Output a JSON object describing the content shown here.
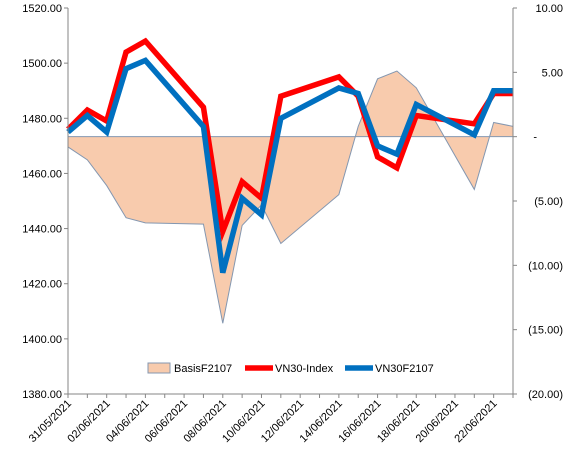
{
  "chart_data": {
    "type": "line",
    "categories": [
      "31/05/2021",
      "01/06/2021",
      "02/06/2021",
      "03/06/2021",
      "04/06/2021",
      "05/06/2021",
      "06/06/2021",
      "07/06/2021",
      "08/06/2021",
      "09/06/2021",
      "10/06/2021",
      "11/06/2021",
      "12/06/2021",
      "13/06/2021",
      "14/06/2021",
      "15/06/2021",
      "16/06/2021",
      "17/06/2021",
      "18/06/2021",
      "19/06/2021",
      "20/06/2021",
      "21/06/2021",
      "22/06/2021",
      "23/06/2021"
    ],
    "x_tick_labels": [
      "31/05/2021",
      "02/06/2021",
      "04/06/2021",
      "06/06/2021",
      "08/06/2021",
      "10/06/2021",
      "12/06/2021",
      "14/06/2021",
      "16/06/2021",
      "18/06/2021",
      "20/06/2021",
      "22/06/2021"
    ],
    "y_left": {
      "range": [
        1380,
        1520
      ],
      "ticks": [
        "1380.00",
        "1400.00",
        "1420.00",
        "1440.00",
        "1460.00",
        "1480.00",
        "1500.00",
        "1520.00"
      ]
    },
    "y_right": {
      "range": [
        -20,
        10
      ],
      "ticks": [
        "(20.00)",
        "(15.00)",
        "(10.00)",
        "(5.00)",
        "-",
        "5.00",
        "10.00"
      ]
    },
    "series": [
      {
        "name": "BasisF2107",
        "axis": "right",
        "style": "area",
        "color": "#f8cbad",
        "edge_color": "#8497b0",
        "x": [
          "31/05/2021",
          "01/06/2021",
          "02/06/2021",
          "03/06/2021",
          "04/06/2021",
          "07/06/2021",
          "08/06/2021",
          "09/06/2021",
          "10/06/2021",
          "11/06/2021",
          "14/06/2021",
          "15/06/2021",
          "16/06/2021",
          "17/06/2021",
          "18/06/2021",
          "21/06/2021",
          "22/06/2021",
          "23/06/2021"
        ],
        "values": [
          -0.8,
          -1.8,
          -3.8,
          -6.3,
          -6.7,
          -6.8,
          -14.5,
          -6.9,
          -5.3,
          -8.3,
          -4.5,
          0.8,
          4.5,
          5.1,
          3.8,
          -4.1,
          1.1,
          0.8
        ]
      },
      {
        "name": "VN30-Index",
        "axis": "left",
        "style": "line",
        "color": "#ff0000",
        "x": [
          "31/05/2021",
          "01/06/2021",
          "02/06/2021",
          "03/06/2021",
          "04/06/2021",
          "07/06/2021",
          "08/06/2021",
          "09/06/2021",
          "10/06/2021",
          "11/06/2021",
          "14/06/2021",
          "15/06/2021",
          "16/06/2021",
          "17/06/2021",
          "18/06/2021",
          "21/06/2021",
          "22/06/2021",
          "23/06/2021"
        ],
        "values": [
          1476,
          1483,
          1479,
          1504,
          1508,
          1484,
          1439,
          1457,
          1451,
          1488,
          1495,
          1488,
          1466,
          1462,
          1481,
          1478,
          1489,
          1489
        ]
      },
      {
        "name": "VN30F2107",
        "axis": "left",
        "style": "line",
        "color": "#0070c0",
        "x": [
          "31/05/2021",
          "01/06/2021",
          "02/06/2021",
          "03/06/2021",
          "04/06/2021",
          "07/06/2021",
          "08/06/2021",
          "09/06/2021",
          "10/06/2021",
          "11/06/2021",
          "14/06/2021",
          "15/06/2021",
          "16/06/2021",
          "17/06/2021",
          "18/06/2021",
          "21/06/2021",
          "22/06/2021",
          "23/06/2021"
        ],
        "values": [
          1475,
          1481,
          1475,
          1498,
          1501,
          1477,
          1424,
          1451,
          1445,
          1480,
          1491,
          1489,
          1470,
          1467,
          1485,
          1474,
          1490,
          1490
        ]
      }
    ],
    "grid": false,
    "legend_position": "bottom-center"
  }
}
